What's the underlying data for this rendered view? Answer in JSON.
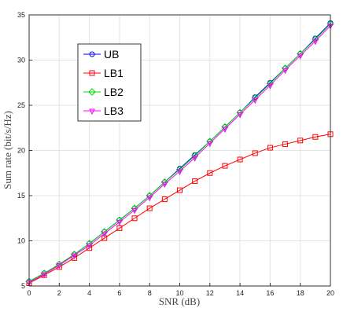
{
  "chart_data": {
    "type": "line",
    "title": "",
    "xlabel": "SNR (dB)",
    "ylabel": "Sum rate (bit/s/Hz)",
    "xlim": [
      0,
      20
    ],
    "ylim": [
      5,
      35
    ],
    "xticks": [
      0,
      2,
      4,
      6,
      8,
      10,
      12,
      14,
      16,
      18,
      20
    ],
    "yticks": [
      5,
      10,
      15,
      20,
      25,
      30,
      35
    ],
    "grid": true,
    "legend_position": "upper-left",
    "x": [
      0,
      1,
      2,
      3,
      4,
      5,
      6,
      7,
      8,
      9,
      10,
      11,
      12,
      13,
      14,
      15,
      16,
      17,
      18,
      19,
      20
    ],
    "series": [
      {
        "name": "UB",
        "color": "#0000ff",
        "marker": "circle",
        "values": [
          5.5,
          6.4,
          7.4,
          8.5,
          9.7,
          11.0,
          12.3,
          13.6,
          15.0,
          16.5,
          18.0,
          19.5,
          21.0,
          22.6,
          24.2,
          25.9,
          27.5,
          29.1,
          30.7,
          32.4,
          34.1
        ]
      },
      {
        "name": "LB1",
        "color": "#ff0000",
        "marker": "square",
        "values": [
          5.3,
          6.2,
          7.1,
          8.1,
          9.2,
          10.3,
          11.4,
          12.5,
          13.6,
          14.6,
          15.6,
          16.6,
          17.5,
          18.3,
          19.0,
          19.7,
          20.3,
          20.7,
          21.1,
          21.5,
          21.8
        ]
      },
      {
        "name": "LB2",
        "color": "#00dd00",
        "marker": "diamond",
        "values": [
          5.5,
          6.4,
          7.4,
          8.5,
          9.7,
          11.0,
          12.3,
          13.6,
          15.0,
          16.5,
          17.9,
          19.4,
          21.0,
          22.6,
          24.2,
          25.8,
          27.4,
          29.1,
          30.7,
          32.3,
          34.0
        ]
      },
      {
        "name": "LB3",
        "color": "#ff00ff",
        "marker": "triangle-down",
        "values": [
          5.4,
          6.3,
          7.3,
          8.4,
          9.5,
          10.8,
          12.1,
          13.4,
          14.8,
          16.3,
          17.7,
          19.2,
          20.8,
          22.4,
          24.0,
          25.6,
          27.2,
          28.9,
          30.5,
          32.1,
          33.8
        ]
      }
    ]
  }
}
